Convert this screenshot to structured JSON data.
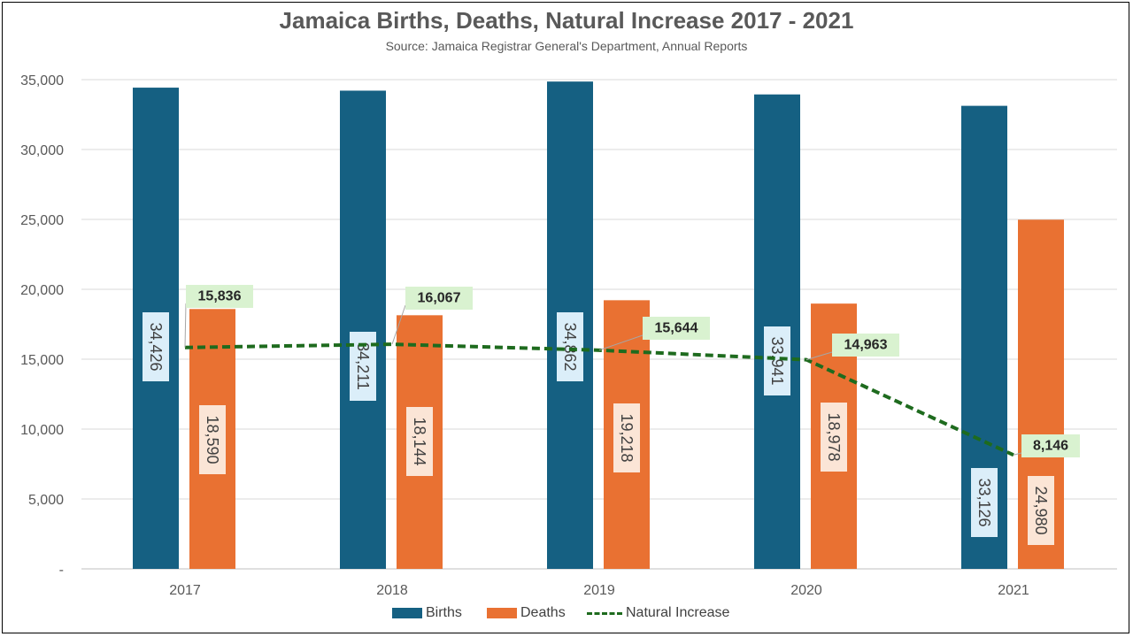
{
  "chart_data": {
    "type": "bar",
    "title": "Jamaica Births, Deaths, Natural Increase 2017 - 2021",
    "subtitle": "Source: Jamaica Registrar General's Department, Annual Reports",
    "categories": [
      "2017",
      "2018",
      "2019",
      "2020",
      "2021"
    ],
    "series": [
      {
        "name": "Births",
        "kind": "bar",
        "color": "#156082",
        "values": [
          34426,
          34211,
          34862,
          33941,
          33126
        ],
        "labels": [
          "34,426",
          "34,211",
          "34,862",
          "33,941",
          "33,126"
        ]
      },
      {
        "name": "Deaths",
        "kind": "bar",
        "color": "#E97132",
        "values": [
          18590,
          18144,
          19218,
          18978,
          24980
        ],
        "labels": [
          "18,590",
          "18,144",
          "19,218",
          "18,978",
          "24,980"
        ]
      },
      {
        "name": "Natural Increase",
        "kind": "line",
        "color": "#1E6B1E",
        "style": "dashed",
        "values": [
          15836,
          16067,
          15644,
          14963,
          8146
        ],
        "labels": [
          "15,836",
          "16,067",
          "15,644",
          "14,963",
          "8,146"
        ]
      }
    ],
    "ylim": [
      0,
      35000
    ],
    "yticks": [
      0,
      5000,
      10000,
      15000,
      20000,
      25000,
      30000,
      35000
    ],
    "ytick_labels": [
      "-",
      "5,000",
      "10,000",
      "15,000",
      "20,000",
      "25,000",
      "30,000",
      "35,000"
    ],
    "xlabel": "",
    "ylabel": "",
    "grid": true,
    "legend_position": "bottom"
  }
}
